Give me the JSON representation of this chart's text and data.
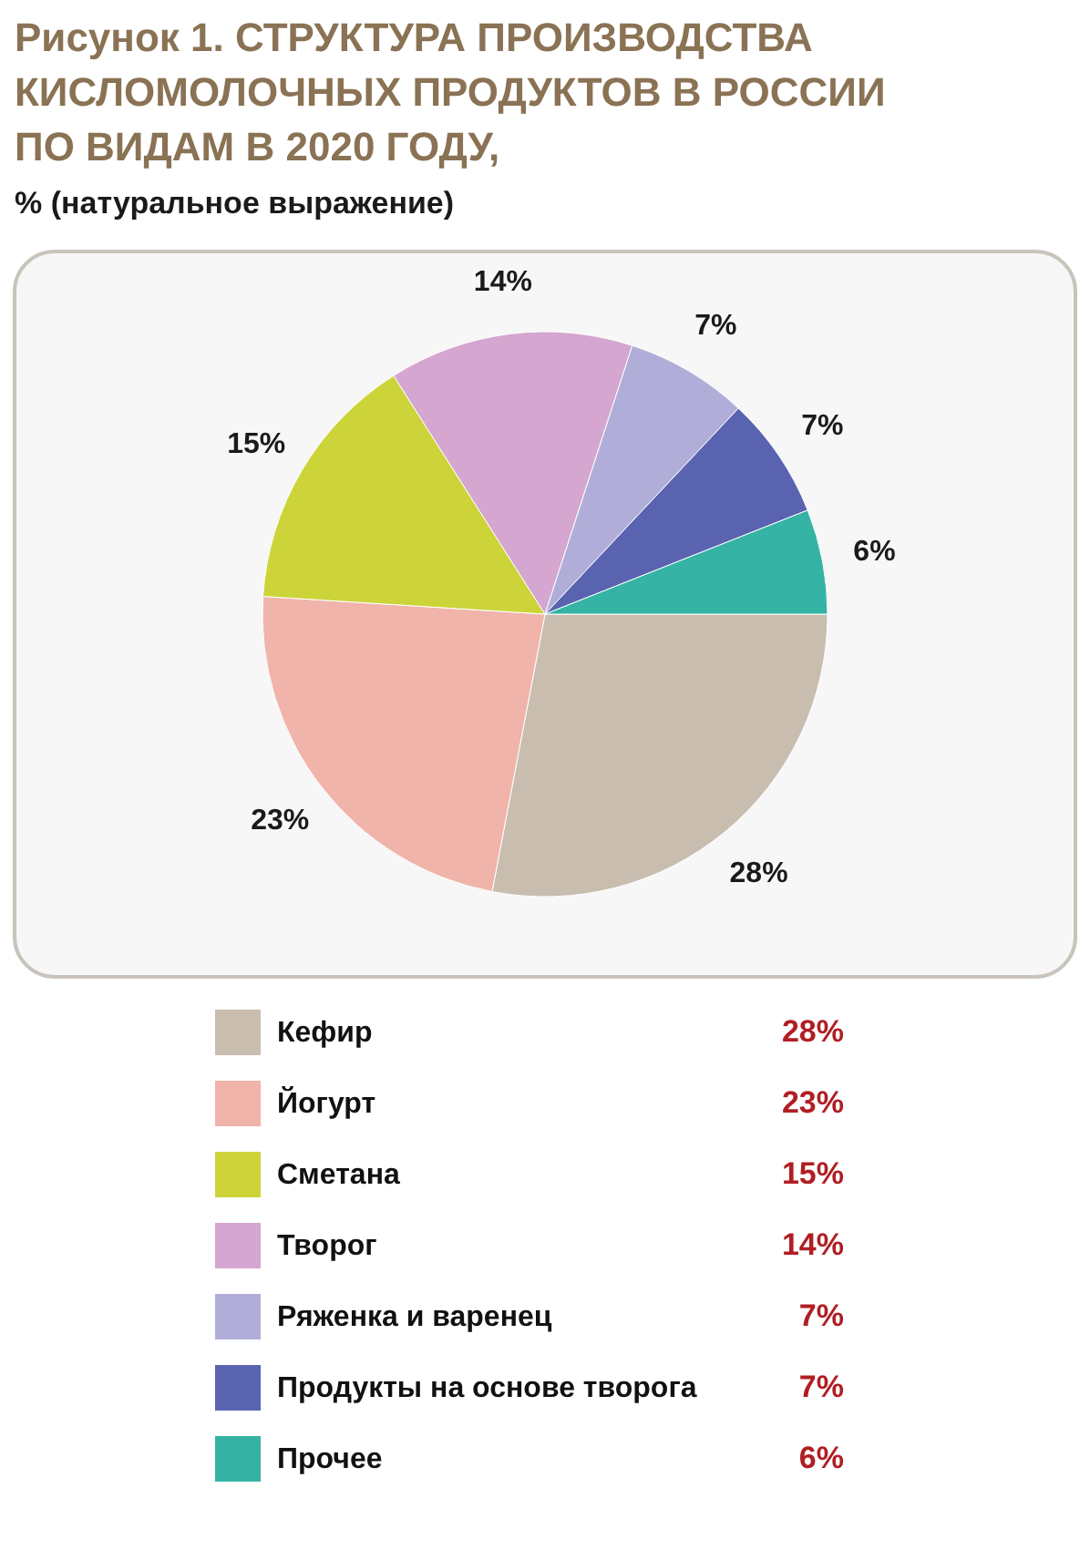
{
  "chart_data": {
    "type": "pie",
    "title": "Рисунок 1. СТРУКТУРА ПРОИЗВОДСТВА КИСЛОМОЛОЧНЫХ ПРОДУКТОВ В РОССИИ ПО ВИДАМ В 2020 ГОДУ,",
    "subtitle": "% (натуральное выражение)",
    "categories": [
      "Кефир",
      "Йогурт",
      "Сметана",
      "Творог",
      "Ряженка и варенец",
      "Продукты на основе творога",
      "Прочее"
    ],
    "values": [
      28,
      23,
      15,
      14,
      7,
      7,
      6
    ],
    "colors": [
      "#c9bdaf",
      "#f0b4aa",
      "#ccd43a",
      "#d4a6d0",
      "#b0aed8",
      "#5a63b0",
      "#35b3a4"
    ],
    "value_labels": [
      "28%",
      "23%",
      "15%",
      "14%",
      "7%",
      "7%",
      "6%"
    ],
    "legend": "bottom"
  }
}
